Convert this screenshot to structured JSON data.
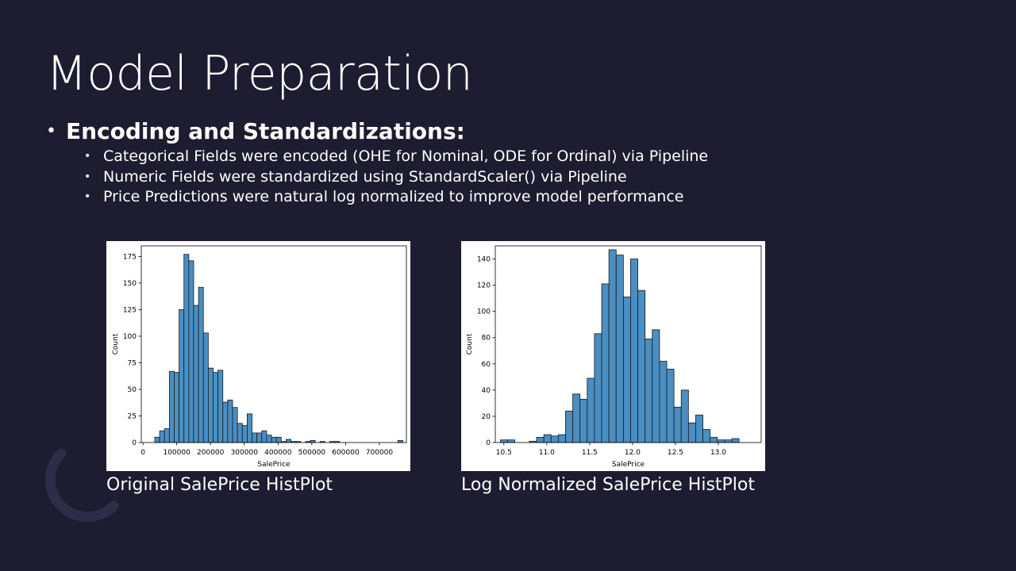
{
  "slide": {
    "title": "Model Preparation",
    "main_bullet": "Encoding and Standardizations:",
    "sub_bullets": [
      "Categorical Fields were encoded (OHE for Nominal, ODE for Ordinal) via Pipeline",
      "Numeric Fields were standardized using StandardScaler() via Pipeline",
      "Price Predictions were natural log normalized to improve model performance"
    ],
    "captions": {
      "left": "Original SalePrice HistPlot",
      "right": "Log Normalized SalePrice HistPlot"
    }
  },
  "colors": {
    "background": "#1d1c30",
    "bar_fill": "#4a8ec2",
    "bar_edge": "#1b1b1b",
    "text": "#ffffff"
  },
  "chart_data": [
    {
      "type": "bar",
      "subtype": "histogram",
      "title": "",
      "xlabel": "SalePrice",
      "ylabel": "Count",
      "xlim": [
        -5000,
        780000
      ],
      "ylim": [
        0,
        185
      ],
      "xticks": [
        0,
        100000,
        200000,
        300000,
        400000,
        500000,
        600000,
        700000
      ],
      "yticks": [
        0,
        25,
        50,
        75,
        100,
        125,
        150,
        175
      ],
      "bin_start": 34900,
      "bin_width": 14400,
      "values": [
        5,
        11,
        13,
        67,
        66,
        125,
        177,
        171,
        129,
        146,
        103,
        70,
        66,
        68,
        38,
        40,
        33,
        18,
        16,
        27,
        9,
        9,
        11,
        7,
        5,
        5,
        1,
        3,
        1,
        1,
        0,
        1,
        2,
        0,
        1,
        0,
        1,
        1,
        0,
        0,
        0,
        0,
        0,
        0,
        0,
        0,
        0,
        0,
        0,
        0,
        2
      ]
    },
    {
      "type": "bar",
      "subtype": "histogram",
      "title": "",
      "xlabel": "SalePrice",
      "ylabel": "Count",
      "xlim": [
        10.4,
        13.5
      ],
      "ylim": [
        0,
        150
      ],
      "xticks": [
        10.5,
        11.0,
        11.5,
        12.0,
        12.5,
        13.0
      ],
      "yticks": [
        0,
        20,
        40,
        60,
        80,
        100,
        120,
        140
      ],
      "bin_start": 10.46,
      "bin_width": 0.0843,
      "values": [
        2,
        2,
        0,
        0,
        1,
        4,
        6,
        5,
        6,
        24,
        37,
        33,
        49,
        83,
        121,
        147,
        143,
        111,
        140,
        116,
        79,
        86,
        62,
        56,
        27,
        40,
        15,
        21,
        10,
        4,
        2,
        2,
        3
      ]
    }
  ]
}
